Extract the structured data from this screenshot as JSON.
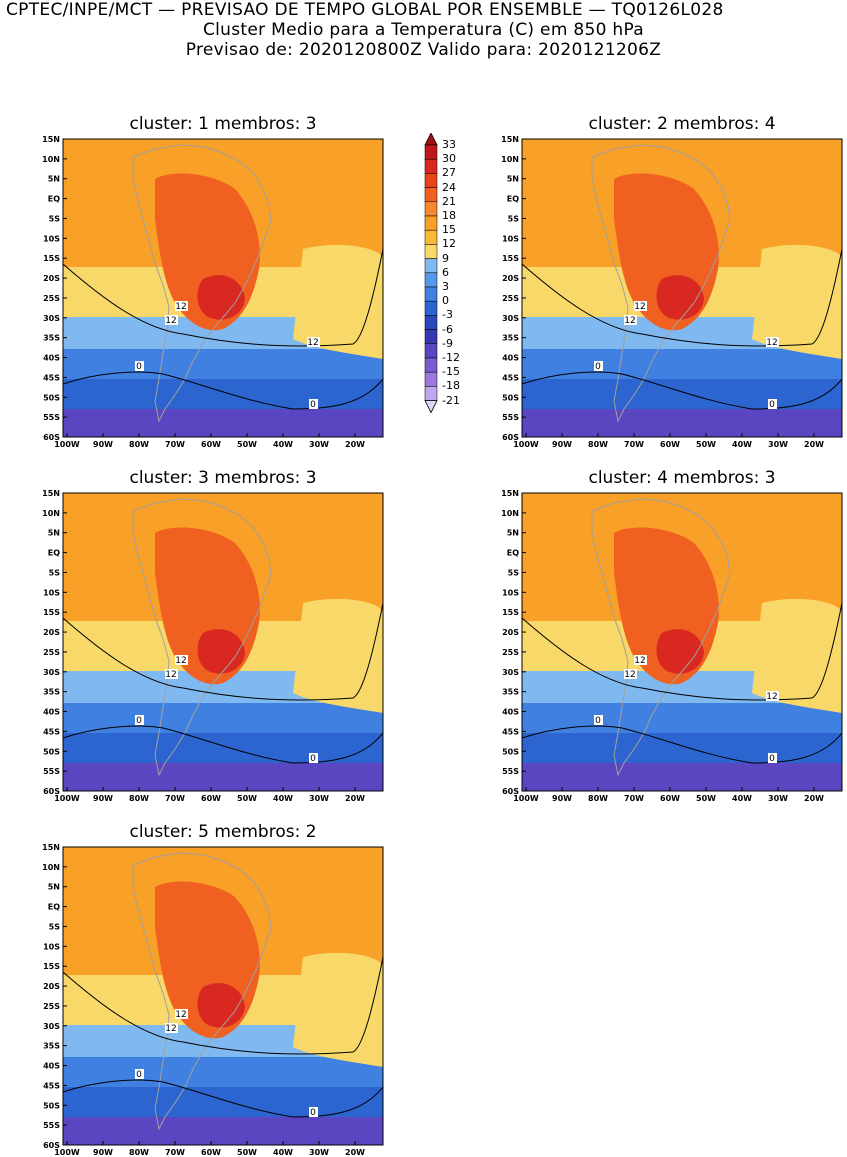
{
  "header": {
    "line1": "CPTEC/INPE/MCT — PREVISAO DE TEMPO GLOBAL POR ENSEMBLE — TQ0126L028",
    "line2": "Cluster Medio para a Temperatura (C) em 850 hPa",
    "line3": "Previsao de: 2020120800Z   Valido para: 2020121206Z"
  },
  "panels": [
    {
      "title": "cluster: 1  membros: 3",
      "labels12": [
        "12",
        "12",
        "12"
      ],
      "labels0": [
        "0",
        "0"
      ]
    },
    {
      "title": "cluster: 2  membros: 4",
      "labels12": [
        "12",
        "12",
        "12"
      ],
      "labels0": [
        "0",
        "0"
      ]
    },
    {
      "title": "cluster: 3  membros: 3",
      "labels12": [
        "12",
        "12"
      ],
      "labels0": [
        "0",
        "0"
      ]
    },
    {
      "title": "cluster: 4  membros: 3",
      "labels12": [
        "12",
        "12",
        "12"
      ],
      "labels0": [
        "0",
        "0"
      ]
    },
    {
      "title": "cluster: 5  membros: 2",
      "labels12": [
        "12",
        "12"
      ],
      "labels0": [
        "0",
        "0"
      ]
    }
  ],
  "axes": {
    "lat_labels": [
      "15N",
      "10N",
      "5N",
      "EQ",
      "5S",
      "10S",
      "15S",
      "20S",
      "25S",
      "30S",
      "35S",
      "40S",
      "45S",
      "50S",
      "55S",
      "60S"
    ],
    "lon_labels": [
      "100W",
      "90W",
      "80W",
      "70W",
      "60W",
      "50W",
      "40W",
      "30W",
      "20W"
    ]
  },
  "colorbar": {
    "labels": [
      "33",
      "30",
      "27",
      "24",
      "21",
      "18",
      "15",
      "12",
      "9",
      "6",
      "3",
      "0",
      "-3",
      "-6",
      "-9",
      "-12",
      "-15",
      "-18",
      "-21"
    ],
    "colors": [
      "#a01010",
      "#c01818",
      "#d82820",
      "#e84418",
      "#f06020",
      "#f88830",
      "#f8a028",
      "#f8b838",
      "#f8d868",
      "#80b8f0",
      "#5898e8",
      "#4080e0",
      "#2c64d0",
      "#2848c0",
      "#3838b0",
      "#5a46c0",
      "#7c5ad0",
      "#9c78e0",
      "#c0a8ee",
      "#e0d8f8"
    ]
  }
}
